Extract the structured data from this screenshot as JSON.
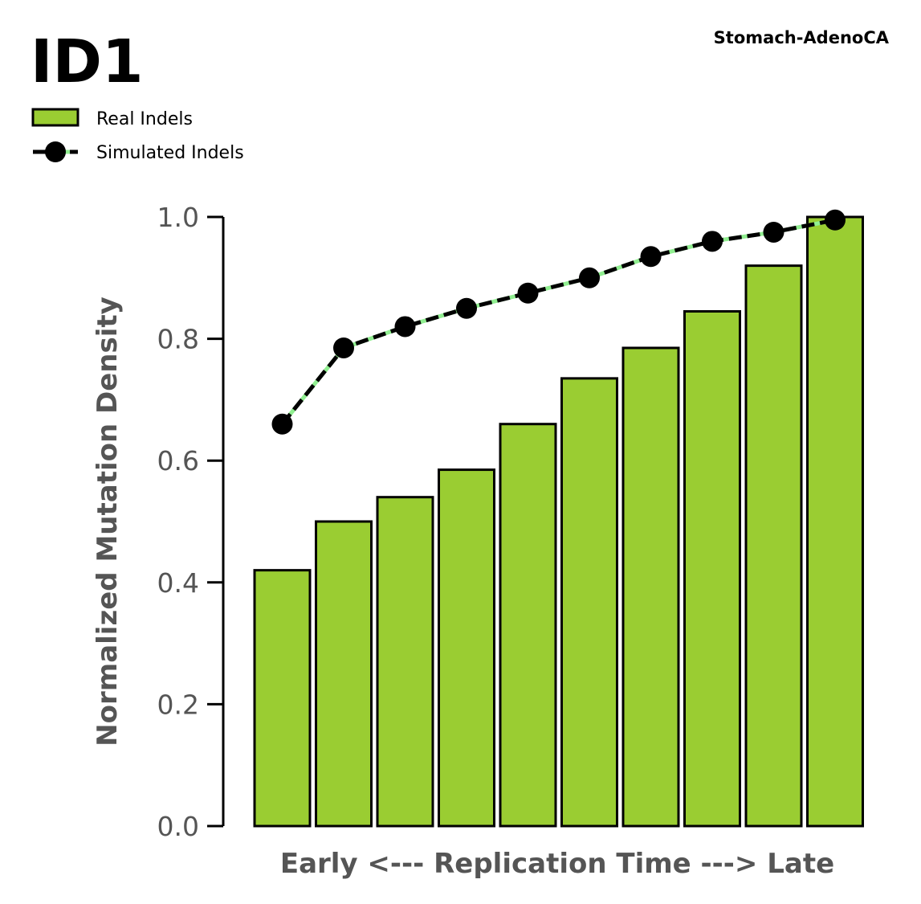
{
  "chart_data": {
    "type": "bar",
    "title": "ID1",
    "subtitle": "Stomach-AdenoCA",
    "xlabel": "Early <--- Replication Time ---> Late",
    "ylabel": "Normalized Mutation Density",
    "ylim": [
      0,
      1
    ],
    "yticks": [
      "0.0",
      "0.2",
      "0.4",
      "0.6",
      "0.8",
      "1.0"
    ],
    "grid": false,
    "legend_position": "top-left",
    "x": [
      1,
      2,
      3,
      4,
      5,
      6,
      7,
      8,
      9,
      10
    ],
    "series": [
      {
        "name": "Real Indels",
        "type": "bar",
        "color": "#9ACD32",
        "edge_color": "#000000",
        "values": [
          0.42,
          0.5,
          0.54,
          0.585,
          0.66,
          0.735,
          0.785,
          0.845,
          0.92,
          1.0
        ]
      },
      {
        "name": "Simulated Indels",
        "type": "line",
        "color": "#000000",
        "line_style": "dashed",
        "underlay_color": "#90EE90",
        "values": [
          0.66,
          0.785,
          0.82,
          0.85,
          0.875,
          0.9,
          0.935,
          0.96,
          0.975,
          0.995
        ]
      }
    ]
  }
}
